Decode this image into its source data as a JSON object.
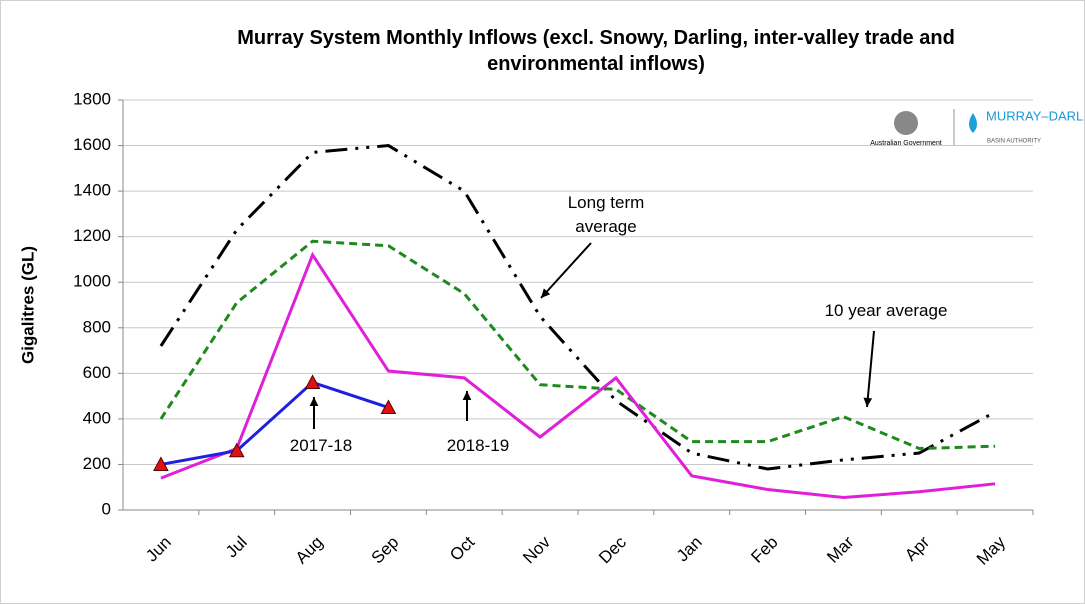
{
  "chart_data": {
    "type": "line",
    "title": "Murray System Monthly Inflows (excl. Snowy, Darling, inter-valley trade and environmental inflows)",
    "y_label": "Gigalitres (GL)",
    "categories": [
      "Jun",
      "Jul",
      "Aug",
      "Sep",
      "Oct",
      "Nov",
      "Dec",
      "Jan",
      "Feb",
      "Mar",
      "Apr",
      "May"
    ],
    "series": [
      {
        "name": "Long term average",
        "color": "#000000",
        "values": [
          720,
          1230,
          1570,
          1600,
          1400,
          850,
          480,
          250,
          180,
          220,
          250,
          430
        ]
      },
      {
        "name": "10 year average",
        "color": "#1e8a1e",
        "values": [
          400,
          910,
          1180,
          1160,
          950,
          550,
          530,
          300,
          300,
          410,
          270,
          280
        ]
      },
      {
        "name": "2017-18",
        "color": "#e020d8",
        "values": [
          140,
          270,
          1120,
          610,
          580,
          320,
          580,
          150,
          90,
          55,
          80,
          115
        ]
      },
      {
        "name": "2018-19",
        "color": "#1f1fe0",
        "values": [
          200,
          260,
          560,
          450,
          null,
          null,
          null,
          null,
          null,
          null,
          null,
          null
        ]
      }
    ],
    "ylim": [
      0,
      1800
    ],
    "yticks": [
      0,
      200,
      400,
      600,
      800,
      1000,
      1200,
      1400,
      1600,
      1800
    ],
    "grid": true,
    "logos": {
      "government": "Australian Government",
      "authority": "MURRAY–DARLING",
      "authority_sub": "BASIN AUTHORITY"
    }
  }
}
